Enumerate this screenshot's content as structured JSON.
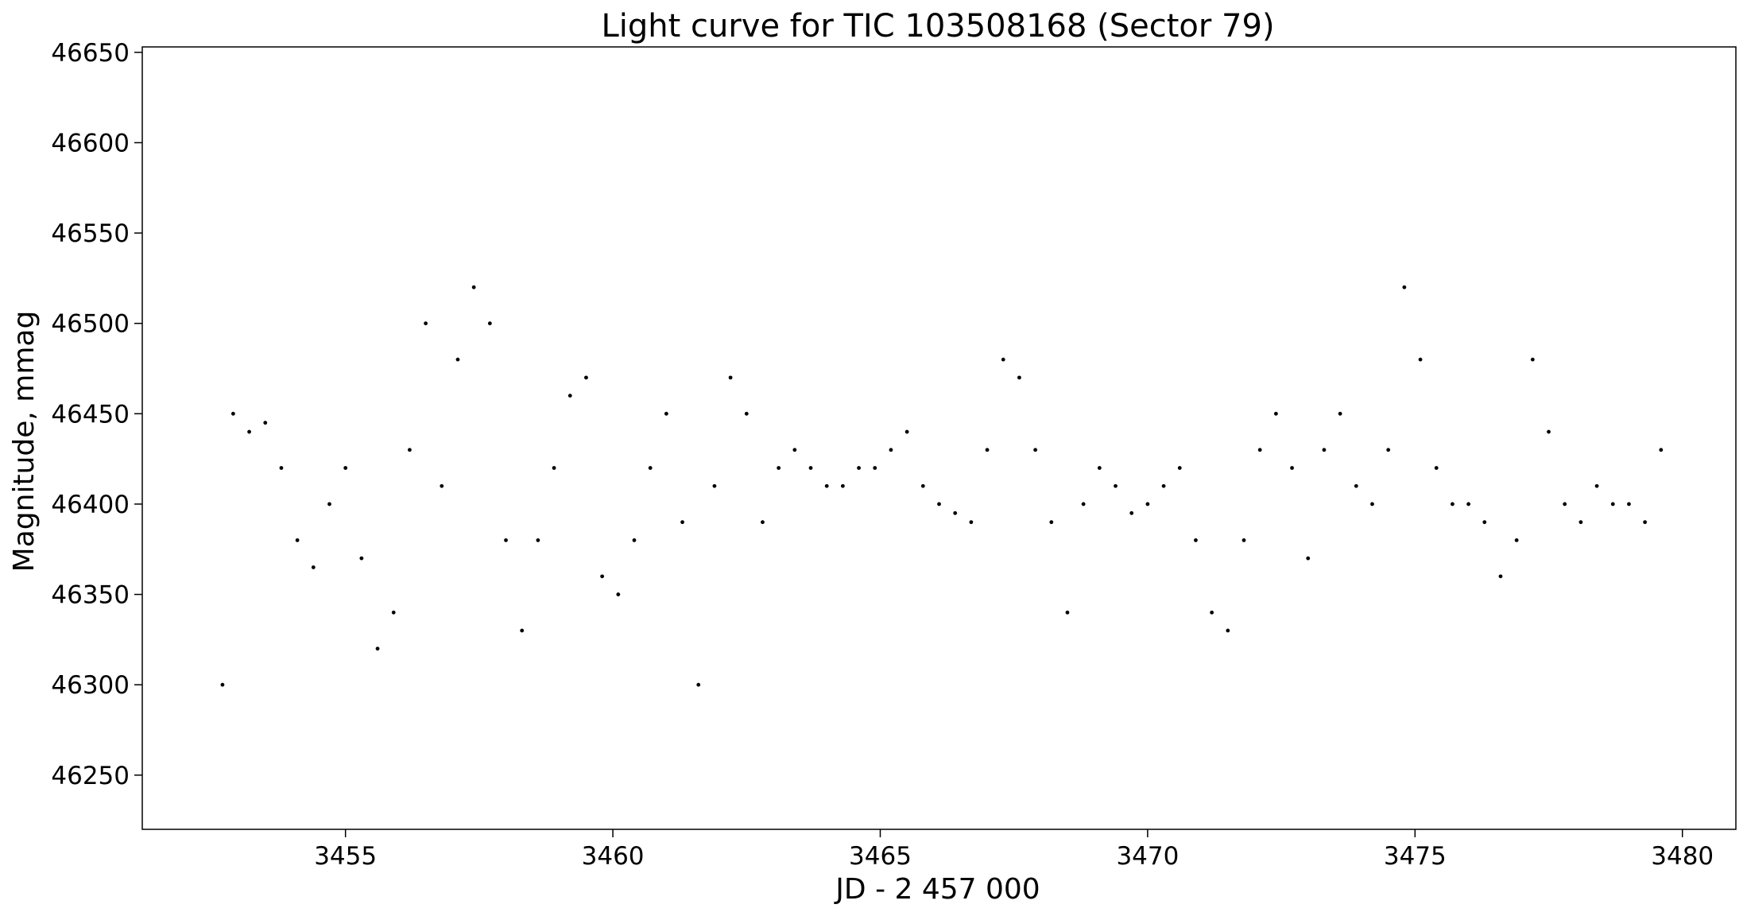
{
  "chart_data": {
    "type": "scatter",
    "title": "Light curve for TIC 103508168 (Sector 79)",
    "xlabel": "JD - 2 457 000",
    "ylabel": "Magnitude, mmag",
    "xlim": [
      3451.2,
      3481.0
    ],
    "ylim": [
      46220,
      46653
    ],
    "x_ticks": [
      3455,
      3460,
      3465,
      3470,
      3475,
      3480
    ],
    "y_ticks": [
      46250,
      46300,
      46350,
      46400,
      46450,
      46500,
      46550,
      46600,
      46650
    ],
    "x_tick_labels": [
      "3455",
      "3460",
      "3465",
      "3470",
      "3475",
      "3480"
    ],
    "y_tick_labels": [
      "46250",
      "46300",
      "46350",
      "46400",
      "46450",
      "46500",
      "46550",
      "46600",
      "46650"
    ],
    "grid": false,
    "marker_color": "#000000",
    "series": [
      {
        "x": [
          3452.7,
          3452.9,
          3453.2,
          3453.5,
          3453.8,
          3454.1,
          3454.4,
          3454.7,
          3455.0,
          3455.3,
          3455.6,
          3455.9,
          3456.2,
          3456.5,
          3456.8,
          3457.1,
          3457.4,
          3457.7,
          3458.0,
          3458.3,
          3458.6,
          3458.9,
          3459.2,
          3459.5,
          3459.8,
          3460.1,
          3460.4,
          3460.7,
          3461.0,
          3461.3,
          3461.6,
          3461.9,
          3462.2,
          3462.5,
          3462.8,
          3463.1,
          3463.4,
          3463.7,
          3464.0,
          3464.3,
          3464.6,
          3464.9,
          3465.2,
          3465.5,
          3465.8,
          3466.1,
          3466.4,
          3466.7,
          3467.0,
          3467.3,
          3467.6,
          3467.9,
          3468.2,
          3468.5,
          3468.8,
          3469.1,
          3469.4,
          3469.7,
          3470.0,
          3470.3,
          3470.6,
          3470.9,
          3471.2,
          3471.5,
          3471.8,
          3472.1,
          3472.4,
          3472.7,
          3473.0,
          3473.3,
          3473.6,
          3473.9,
          3474.2,
          3474.5,
          3474.8,
          3475.1,
          3475.4,
          3475.7,
          3476.0,
          3476.3,
          3476.6,
          3476.9,
          3477.2,
          3477.5,
          3477.8,
          3478.1,
          3478.4,
          3478.7,
          3479.0,
          3479.3,
          3479.6
        ],
        "y": [
          46300,
          46450,
          46440,
          46445,
          46420,
          46380,
          46365,
          46400,
          46420,
          46370,
          46320,
          46340,
          46430,
          46500,
          46410,
          46480,
          46520,
          46500,
          46380,
          46330,
          46380,
          46420,
          46460,
          46470,
          46360,
          46350,
          46380,
          46420,
          46450,
          46390,
          46300,
          46410,
          46470,
          46450,
          46390,
          46420,
          46430,
          46420,
          46410,
          46410,
          46420,
          46420,
          46430,
          46440,
          46410,
          46400,
          46395,
          46390,
          46430,
          46480,
          46470,
          46430,
          46390,
          46340,
          46400,
          46420,
          46410,
          46395,
          46400,
          46410,
          46420,
          46380,
          46340,
          46330,
          46380,
          46430,
          46450,
          46420,
          46370,
          46430,
          46450,
          46410,
          46400,
          46430,
          46520,
          46480,
          46420,
          46400,
          46400,
          46390,
          46360,
          46380,
          46480,
          46440,
          46400,
          46390,
          46410,
          46400,
          46400,
          46390,
          46430
        ]
      }
    ]
  }
}
